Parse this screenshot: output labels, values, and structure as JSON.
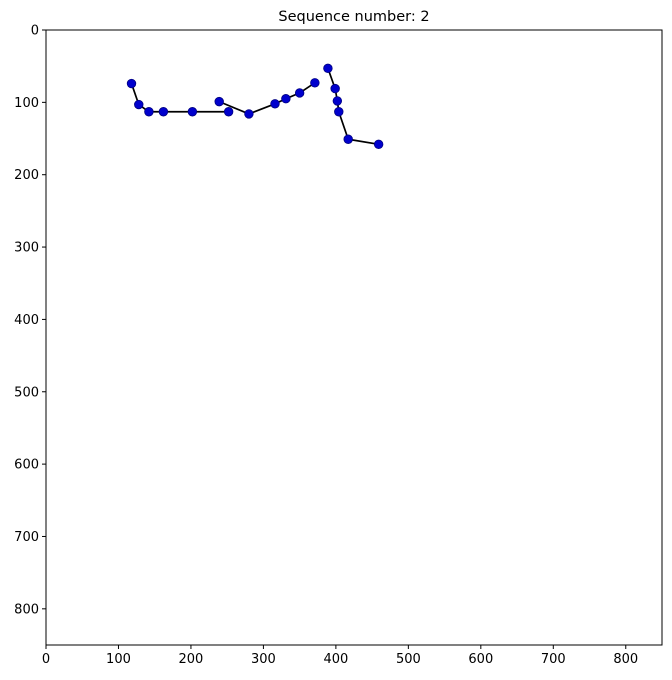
{
  "chart_data": {
    "type": "scatter",
    "title": "Sequence number: 2",
    "xlabel": "",
    "ylabel": "",
    "xlim": [
      0,
      850
    ],
    "ylim": [
      850,
      0
    ],
    "y_axis_inverted": true,
    "xticks": [
      0,
      100,
      200,
      300,
      400,
      500,
      600,
      700,
      800
    ],
    "yticks": [
      0,
      100,
      200,
      300,
      400,
      500,
      600,
      700,
      800
    ],
    "grid": false,
    "legend": "none",
    "marker_color": "#0000cd",
    "marker_edge_color": "#000080",
    "line_color": "#000000",
    "strokes": [
      {
        "points": [
          {
            "x": 118,
            "y": 74
          },
          {
            "x": 128,
            "y": 103
          },
          {
            "x": 142,
            "y": 113
          },
          {
            "x": 162,
            "y": 113
          },
          {
            "x": 202,
            "y": 113
          },
          {
            "x": 252,
            "y": 113
          }
        ]
      },
      {
        "points": [
          {
            "x": 239,
            "y": 99
          },
          {
            "x": 280,
            "y": 116
          },
          {
            "x": 316,
            "y": 102
          },
          {
            "x": 331,
            "y": 95
          },
          {
            "x": 350,
            "y": 87
          },
          {
            "x": 371,
            "y": 73
          }
        ]
      },
      {
        "points": [
          {
            "x": 389,
            "y": 53
          },
          {
            "x": 399,
            "y": 81
          },
          {
            "x": 402,
            "y": 98
          },
          {
            "x": 404,
            "y": 113
          },
          {
            "x": 417,
            "y": 151
          },
          {
            "x": 459,
            "y": 158
          }
        ]
      }
    ]
  }
}
